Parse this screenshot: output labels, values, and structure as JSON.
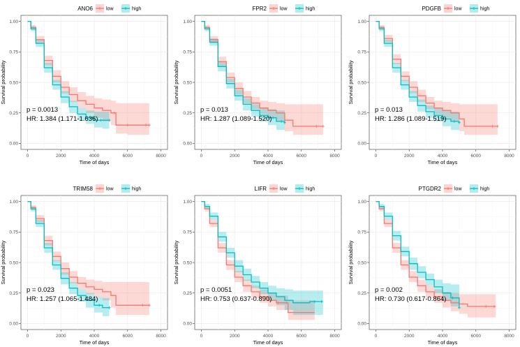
{
  "chart_data": [
    {
      "type": "line",
      "title": "ANO6",
      "legend": [
        {
          "name": "low",
          "color": "#f8766d"
        },
        {
          "name": "high",
          "color": "#00bfc4"
        }
      ],
      "xlabel": "Time of days",
      "ylabel": "Survival probability",
      "xlim": [
        0,
        8000
      ],
      "ylim": [
        0,
        1.0
      ],
      "xticks": [
        "0",
        "2000",
        "4000",
        "6000",
        "8000"
      ],
      "yticks": [
        "0.00",
        "0.25",
        "0.50",
        "0.75",
        "1.00"
      ],
      "annotations": {
        "p": "p = 0.0013",
        "hr": "HR: 1.384 (1.171-1.636)"
      },
      "series": [
        {
          "name": "low",
          "color": "#f8766d",
          "x": [
            0,
            200,
            500,
            1000,
            1500,
            2000,
            2500,
            3000,
            3500,
            4000,
            4500,
            5000,
            5300,
            6000,
            7300
          ],
          "y": [
            1.0,
            0.95,
            0.85,
            0.68,
            0.55,
            0.46,
            0.4,
            0.35,
            0.32,
            0.29,
            0.27,
            0.25,
            0.15,
            0.15,
            0.15
          ],
          "lower": [
            1.0,
            0.93,
            0.82,
            0.64,
            0.5,
            0.41,
            0.34,
            0.29,
            0.25,
            0.21,
            0.18,
            0.15,
            0.08,
            0.07,
            0.07
          ],
          "upper": [
            1.0,
            0.97,
            0.88,
            0.72,
            0.6,
            0.51,
            0.46,
            0.42,
            0.39,
            0.37,
            0.36,
            0.35,
            0.33,
            0.33,
            0.33
          ],
          "censor": [
            5200,
            6000,
            7100,
            7300
          ]
        },
        {
          "name": "high",
          "color": "#00bfc4",
          "x": [
            0,
            200,
            500,
            1000,
            1500,
            2000,
            2500,
            3000,
            3500,
            4000,
            4500,
            4900
          ],
          "y": [
            1.0,
            0.94,
            0.82,
            0.62,
            0.48,
            0.38,
            0.3,
            0.24,
            0.21,
            0.19,
            0.19,
            0.19
          ],
          "lower": [
            1.0,
            0.92,
            0.79,
            0.58,
            0.44,
            0.33,
            0.25,
            0.19,
            0.16,
            0.13,
            0.12,
            0.12
          ],
          "upper": [
            1.0,
            0.96,
            0.85,
            0.66,
            0.52,
            0.43,
            0.35,
            0.29,
            0.27,
            0.26,
            0.26,
            0.26
          ],
          "censor": [
            3900,
            4400,
            4900
          ]
        }
      ]
    },
    {
      "type": "line",
      "title": "FPR2",
      "legend": [
        {
          "name": "low",
          "color": "#f8766d"
        },
        {
          "name": "high",
          "color": "#00bfc4"
        }
      ],
      "xlabel": "Time of days",
      "ylabel": "Survival probability",
      "xlim": [
        0,
        8000
      ],
      "ylim": [
        0,
        1.0
      ],
      "xticks": [
        "0",
        "2000",
        "4000",
        "6000",
        "8000"
      ],
      "yticks": [
        "0.00",
        "0.25",
        "0.50",
        "0.75",
        "1.00"
      ],
      "annotations": {
        "p": "p = 0.013",
        "hr": "HR: 1.287 (1.089-1.520)"
      },
      "series": [
        {
          "name": "low",
          "color": "#f8766d",
          "x": [
            0,
            200,
            500,
            1000,
            1500,
            2000,
            2500,
            3000,
            3500,
            4000,
            4500,
            5000,
            5500,
            6500,
            7300
          ],
          "y": [
            1.0,
            0.95,
            0.85,
            0.67,
            0.54,
            0.45,
            0.38,
            0.33,
            0.29,
            0.27,
            0.25,
            0.19,
            0.14,
            0.14,
            0.14
          ],
          "lower": [
            1.0,
            0.93,
            0.82,
            0.63,
            0.5,
            0.4,
            0.33,
            0.28,
            0.24,
            0.21,
            0.18,
            0.1,
            0.07,
            0.07,
            0.07
          ],
          "upper": [
            1.0,
            0.97,
            0.88,
            0.71,
            0.58,
            0.5,
            0.43,
            0.38,
            0.35,
            0.34,
            0.33,
            0.32,
            0.32,
            0.32,
            0.32
          ],
          "censor": [
            6900,
            7300
          ]
        },
        {
          "name": "high",
          "color": "#00bfc4",
          "x": [
            0,
            200,
            500,
            1000,
            1500,
            2000,
            2500,
            3000,
            3500,
            4000,
            4500,
            5000
          ],
          "y": [
            1.0,
            0.94,
            0.83,
            0.63,
            0.49,
            0.39,
            0.32,
            0.27,
            0.23,
            0.21,
            0.18,
            0.17
          ],
          "lower": [
            1.0,
            0.92,
            0.8,
            0.59,
            0.45,
            0.35,
            0.27,
            0.22,
            0.18,
            0.15,
            0.11,
            0.1
          ],
          "upper": [
            1.0,
            0.96,
            0.86,
            0.67,
            0.53,
            0.44,
            0.37,
            0.32,
            0.29,
            0.28,
            0.27,
            0.26
          ],
          "censor": [
            4300,
            4800,
            5000
          ]
        }
      ]
    },
    {
      "type": "line",
      "title": "PDGFB",
      "legend": [
        {
          "name": "low",
          "color": "#f8766d"
        },
        {
          "name": "high",
          "color": "#00bfc4"
        }
      ],
      "xlabel": "Time of days",
      "ylabel": "Survival probability",
      "xlim": [
        0,
        8000
      ],
      "ylim": [
        0,
        1.0
      ],
      "xticks": [
        "0",
        "2000",
        "4000",
        "6000",
        "8000"
      ],
      "yticks": [
        "0.00",
        "0.25",
        "0.50",
        "0.75",
        "1.00"
      ],
      "annotations": {
        "p": "p = 0.013",
        "hr": "HR: 1.286 (1.089-1.519)"
      },
      "series": [
        {
          "name": "low",
          "color": "#f8766d",
          "x": [
            0,
            200,
            500,
            1000,
            1500,
            2000,
            2500,
            3000,
            3500,
            4000,
            4500,
            5000,
            5300,
            6500,
            7300
          ],
          "y": [
            1.0,
            0.95,
            0.86,
            0.69,
            0.55,
            0.46,
            0.39,
            0.33,
            0.29,
            0.27,
            0.25,
            0.2,
            0.14,
            0.14,
            0.14
          ],
          "lower": [
            1.0,
            0.93,
            0.83,
            0.65,
            0.51,
            0.41,
            0.34,
            0.28,
            0.24,
            0.21,
            0.18,
            0.1,
            0.07,
            0.07,
            0.07
          ],
          "upper": [
            1.0,
            0.97,
            0.89,
            0.73,
            0.59,
            0.51,
            0.44,
            0.38,
            0.35,
            0.34,
            0.33,
            0.32,
            0.32,
            0.32,
            0.32
          ],
          "censor": [
            7000,
            7300
          ]
        },
        {
          "name": "high",
          "color": "#00bfc4",
          "x": [
            0,
            200,
            500,
            1000,
            1500,
            2000,
            2500,
            3000,
            3500,
            4000,
            4500,
            5000
          ],
          "y": [
            1.0,
            0.94,
            0.82,
            0.62,
            0.48,
            0.38,
            0.31,
            0.26,
            0.23,
            0.2,
            0.18,
            0.17
          ],
          "lower": [
            1.0,
            0.92,
            0.79,
            0.58,
            0.44,
            0.34,
            0.26,
            0.21,
            0.18,
            0.14,
            0.11,
            0.1
          ],
          "upper": [
            1.0,
            0.96,
            0.85,
            0.66,
            0.52,
            0.43,
            0.36,
            0.31,
            0.29,
            0.27,
            0.26,
            0.26
          ],
          "censor": [
            4200,
            4700,
            5000
          ]
        }
      ]
    },
    {
      "type": "line",
      "title": "TRIM58",
      "legend": [
        {
          "name": "low",
          "color": "#f8766d"
        },
        {
          "name": "high",
          "color": "#00bfc4"
        }
      ],
      "xlabel": "Time of days",
      "ylabel": "Survival probability",
      "xlim": [
        0,
        8000
      ],
      "ylim": [
        0,
        1.0
      ],
      "xticks": [
        "0",
        "2000",
        "4000",
        "6000",
        "8000"
      ],
      "yticks": [
        "0.00",
        "0.25",
        "0.50",
        "0.75",
        "1.00"
      ],
      "annotations": {
        "p": "p = 0.023",
        "hr": "HR: 1.257 (1.065-1.484)"
      },
      "series": [
        {
          "name": "low",
          "color": "#f8766d",
          "x": [
            0,
            200,
            500,
            1000,
            1500,
            2000,
            2500,
            3000,
            3500,
            4000,
            4500,
            5000,
            5300,
            6500,
            7300
          ],
          "y": [
            1.0,
            0.95,
            0.86,
            0.68,
            0.55,
            0.45,
            0.38,
            0.33,
            0.3,
            0.28,
            0.26,
            0.23,
            0.15,
            0.15,
            0.15
          ],
          "lower": [
            1.0,
            0.93,
            0.83,
            0.64,
            0.51,
            0.4,
            0.33,
            0.28,
            0.24,
            0.22,
            0.19,
            0.13,
            0.07,
            0.07,
            0.07
          ],
          "upper": [
            1.0,
            0.97,
            0.89,
            0.72,
            0.59,
            0.5,
            0.43,
            0.38,
            0.36,
            0.35,
            0.34,
            0.34,
            0.34,
            0.34,
            0.34
          ],
          "censor": [
            6900,
            7300
          ]
        },
        {
          "name": "high",
          "color": "#00bfc4",
          "x": [
            0,
            200,
            500,
            1000,
            1500,
            2000,
            2500,
            3000,
            3500,
            4000,
            4500,
            4900
          ],
          "y": [
            1.0,
            0.94,
            0.82,
            0.62,
            0.48,
            0.37,
            0.29,
            0.23,
            0.19,
            0.15,
            0.13,
            0.13
          ],
          "lower": [
            1.0,
            0.92,
            0.79,
            0.58,
            0.44,
            0.32,
            0.24,
            0.18,
            0.13,
            0.09,
            0.06,
            0.06
          ],
          "upper": [
            1.0,
            0.96,
            0.85,
            0.66,
            0.52,
            0.42,
            0.34,
            0.28,
            0.25,
            0.22,
            0.21,
            0.21
          ],
          "censor": [
            4300,
            4900
          ]
        }
      ]
    },
    {
      "type": "line",
      "title": "LIFR",
      "legend": [
        {
          "name": "low",
          "color": "#f8766d"
        },
        {
          "name": "high",
          "color": "#00bfc4"
        }
      ],
      "xlabel": "Time of days",
      "ylabel": "Survival probability",
      "xlim": [
        0,
        8000
      ],
      "ylim": [
        0,
        1.0
      ],
      "xticks": [
        "0",
        "2000",
        "4000",
        "6000",
        "8000"
      ],
      "yticks": [
        "0.00",
        "0.25",
        "0.50",
        "0.75",
        "1.00"
      ],
      "annotations": {
        "p": "p = 0.0051",
        "hr": "HR: 0.753 (0.637-0.890)"
      },
      "series": [
        {
          "name": "low",
          "color": "#f8766d",
          "x": [
            0,
            200,
            500,
            1000,
            1500,
            2000,
            2500,
            3000,
            3500,
            4000,
            4500,
            5200,
            6800
          ],
          "y": [
            1.0,
            0.94,
            0.82,
            0.62,
            0.48,
            0.38,
            0.31,
            0.26,
            0.22,
            0.19,
            0.17,
            0.09,
            0.09
          ],
          "lower": [
            1.0,
            0.92,
            0.79,
            0.58,
            0.44,
            0.34,
            0.26,
            0.21,
            0.17,
            0.14,
            0.11,
            0.03,
            0.03
          ],
          "upper": [
            1.0,
            0.96,
            0.85,
            0.66,
            0.52,
            0.43,
            0.36,
            0.31,
            0.28,
            0.25,
            0.23,
            0.19,
            0.19
          ],
          "censor": [
            4600,
            5100
          ]
        },
        {
          "name": "high",
          "color": "#00bfc4",
          "x": [
            0,
            200,
            500,
            1000,
            1500,
            2000,
            2500,
            3000,
            3500,
            4000,
            4500,
            5000,
            5500,
            6500,
            7300
          ],
          "y": [
            1.0,
            0.96,
            0.88,
            0.71,
            0.58,
            0.47,
            0.4,
            0.34,
            0.29,
            0.25,
            0.22,
            0.19,
            0.17,
            0.18,
            0.18
          ],
          "lower": [
            1.0,
            0.94,
            0.85,
            0.67,
            0.54,
            0.42,
            0.35,
            0.29,
            0.24,
            0.19,
            0.15,
            0.11,
            0.07,
            0.07,
            0.07
          ],
          "upper": [
            1.0,
            0.98,
            0.91,
            0.75,
            0.62,
            0.52,
            0.45,
            0.39,
            0.34,
            0.31,
            0.29,
            0.28,
            0.27,
            0.27,
            0.27
          ],
          "censor": [
            6800,
            7200
          ]
        }
      ]
    },
    {
      "type": "line",
      "title": "PTGDR2",
      "legend": [
        {
          "name": "low",
          "color": "#f8766d"
        },
        {
          "name": "high",
          "color": "#00bfc4"
        }
      ],
      "xlabel": "Time of days",
      "ylabel": "Survival probability",
      "xlim": [
        0,
        8000
      ],
      "ylim": [
        0,
        1.0
      ],
      "xticks": [
        "0",
        "2000",
        "4000",
        "6000",
        "8000"
      ],
      "yticks": [
        "0.00",
        "0.25",
        "0.50",
        "0.75",
        "1.00"
      ],
      "annotations": {
        "p": "p = 0.002",
        "hr": "HR: 0.730 (0.617-0.864)"
      },
      "series": [
        {
          "name": "low",
          "color": "#f8766d",
          "x": [
            0,
            200,
            500,
            1000,
            1500,
            2000,
            2500,
            3000,
            3500,
            4000,
            4500,
            5000,
            5500,
            6500,
            7200
          ],
          "y": [
            1.0,
            0.94,
            0.82,
            0.62,
            0.48,
            0.38,
            0.31,
            0.26,
            0.22,
            0.19,
            0.17,
            0.16,
            0.14,
            0.14,
            0.14
          ],
          "lower": [
            1.0,
            0.92,
            0.79,
            0.58,
            0.44,
            0.34,
            0.26,
            0.21,
            0.17,
            0.13,
            0.1,
            0.08,
            0.05,
            0.05,
            0.05
          ],
          "upper": [
            1.0,
            0.96,
            0.85,
            0.66,
            0.52,
            0.43,
            0.36,
            0.31,
            0.28,
            0.26,
            0.25,
            0.24,
            0.24,
            0.24,
            0.24
          ],
          "censor": [
            6600,
            7100
          ]
        },
        {
          "name": "high",
          "color": "#00bfc4",
          "x": [
            0,
            200,
            500,
            1000,
            1500,
            2000,
            2500,
            3000,
            3500,
            4000,
            4500,
            5000
          ],
          "y": [
            1.0,
            0.96,
            0.88,
            0.72,
            0.59,
            0.49,
            0.42,
            0.36,
            0.3,
            0.25,
            0.21,
            0.13
          ],
          "lower": [
            1.0,
            0.94,
            0.85,
            0.68,
            0.55,
            0.44,
            0.37,
            0.31,
            0.25,
            0.19,
            0.14,
            0.05
          ],
          "upper": [
            1.0,
            0.98,
            0.91,
            0.76,
            0.63,
            0.54,
            0.47,
            0.41,
            0.36,
            0.33,
            0.32,
            0.32
          ],
          "censor": [
            4600,
            5000
          ]
        }
      ]
    }
  ]
}
